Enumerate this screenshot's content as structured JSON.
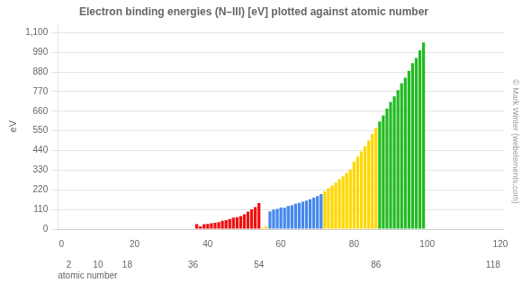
{
  "chart_data": {
    "type": "bar",
    "title": "Electron binding energies (N–III) [eV] plotted against atomic number",
    "ylabel": "eV",
    "xlabel": "atomic number",
    "annotations": [
      "© Mark Winter (webelements.com)"
    ],
    "xlim": [
      -1,
      121
    ],
    "xticks": [
      0,
      20,
      40,
      60,
      80,
      100,
      120
    ],
    "x2ticks": [
      2,
      10,
      18,
      36,
      54,
      86,
      118
    ],
    "ylim": [
      0,
      1150
    ],
    "yticks": [
      0,
      110,
      220,
      330,
      440,
      550,
      660,
      770,
      880,
      990,
      1100
    ],
    "grid": "y",
    "x": [
      37,
      38,
      39,
      40,
      41,
      42,
      43,
      44,
      45,
      46,
      47,
      48,
      49,
      50,
      51,
      52,
      53,
      54,
      55,
      56,
      57,
      58,
      59,
      60,
      61,
      62,
      63,
      64,
      65,
      66,
      67,
      68,
      69,
      70,
      71,
      72,
      73,
      74,
      75,
      76,
      77,
      78,
      79,
      80,
      81,
      82,
      83,
      84,
      85,
      86,
      87,
      88,
      89,
      90,
      91,
      92,
      93,
      94,
      95,
      96,
      97,
      98,
      99
    ],
    "values": [
      27.4,
      15.3,
      28.1,
      29.4,
      32.6,
      35.5,
      38.9,
      46.5,
      50.5,
      57.2,
      63.7,
      66.9,
      73.5,
      83.6,
      98.4,
      110.3,
      122.9,
      145.5,
      7.2,
      14.8,
      99.0,
      110.0,
      113.2,
      120.4,
      120.0,
      129.0,
      133.0,
      142.6,
      147.0,
      153.6,
      160.0,
      167.6,
      175.5,
      185.0,
      196.3,
      211.5,
      229.3,
      243.5,
      260.5,
      279.0,
      295.0,
      314.0,
      334.0,
      378.2,
      406.6,
      435.2,
      464.0,
      495.0,
      533.0,
      567.0,
      603.0,
      636.0,
      675.0,
      712.1,
      743.0,
      778.3,
      815.9,
      848.0,
      887.0,
      929.0,
      958.0,
      1001.0,
      1045.0
    ],
    "colors": [
      "#ee1111",
      "#ee1111",
      "#ee1111",
      "#ee1111",
      "#ee1111",
      "#ee1111",
      "#ee1111",
      "#ee1111",
      "#ee1111",
      "#ee1111",
      "#ee1111",
      "#ee1111",
      "#ee1111",
      "#ee1111",
      "#ee1111",
      "#ee1111",
      "#ee1111",
      "#ee1111",
      "#ffd700",
      "#ffd700",
      "#4488ee",
      "#4488ee",
      "#4488ee",
      "#4488ee",
      "#4488ee",
      "#4488ee",
      "#4488ee",
      "#4488ee",
      "#4488ee",
      "#4488ee",
      "#4488ee",
      "#4488ee",
      "#4488ee",
      "#4488ee",
      "#4488ee",
      "#ffd700",
      "#ffd700",
      "#ffd700",
      "#ffd700",
      "#ffd700",
      "#ffd700",
      "#ffd700",
      "#ffd700",
      "#ffd700",
      "#ffd700",
      "#ffd700",
      "#ffd700",
      "#ffd700",
      "#ffd700",
      "#ffd700",
      "#22bb22",
      "#22bb22",
      "#22bb22",
      "#22bb22",
      "#22bb22",
      "#22bb22",
      "#22bb22",
      "#22bb22",
      "#22bb22",
      "#22bb22",
      "#22bb22",
      "#22bb22",
      "#22bb22"
    ]
  }
}
